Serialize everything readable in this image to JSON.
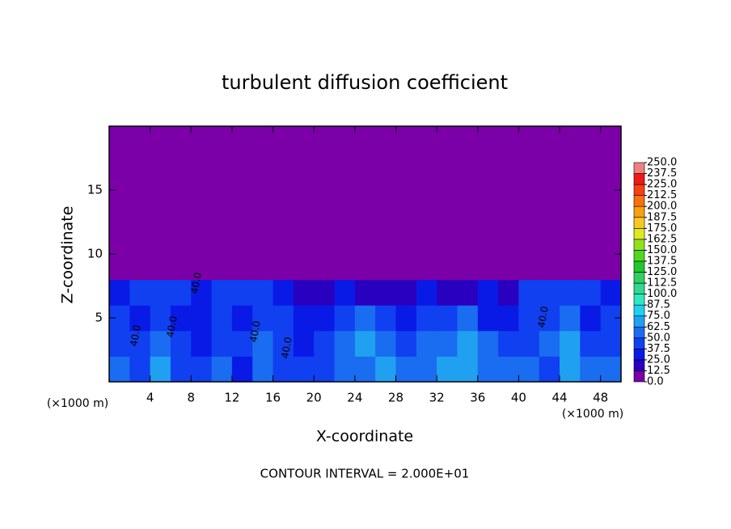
{
  "chart_data": {
    "type": "contour",
    "title": "turbulent diffusion coefficient",
    "x_label": "X-coordinate",
    "y_label": "Z-coordinate",
    "x_unit_label": "(×1000 m)",
    "y_unit_label": "(×1000 m)",
    "footer": "CONTOUR INTERVAL = 2.000E+01",
    "contour_labels": [
      "40.0",
      "40.0",
      "40.0",
      "40.0",
      "40.0",
      "40.0"
    ],
    "xlim": [
      0,
      50
    ],
    "ylim": [
      0,
      20
    ],
    "xticks": [
      4,
      8,
      12,
      16,
      20,
      24,
      28,
      32,
      36,
      40,
      44,
      48
    ],
    "yticks": [
      5,
      10,
      15
    ],
    "field": {
      "x_edges": [
        0,
        2,
        4,
        6,
        8,
        10,
        12,
        14,
        16,
        18,
        20,
        22,
        24,
        26,
        28,
        30,
        32,
        34,
        36,
        38,
        40,
        42,
        44,
        46,
        48,
        50
      ],
      "z_edges": [
        0,
        2,
        4,
        6,
        8,
        20
      ],
      "values": [
        [
          50,
          37.5,
          62.5,
          37.5,
          37.5,
          50,
          25,
          50,
          37.5,
          37.5,
          37.5,
          50,
          50,
          62.5,
          50,
          50,
          62.5,
          62.5,
          50,
          50,
          50,
          37.5,
          62.5,
          50,
          50
        ],
        [
          37.5,
          37.5,
          50,
          37.5,
          25,
          37.5,
          37.5,
          50,
          37.5,
          25,
          37.5,
          50,
          62.5,
          50,
          37.5,
          50,
          50,
          62.5,
          50,
          37.5,
          37.5,
          50,
          62.5,
          37.5,
          37.5
        ],
        [
          37.5,
          25,
          37.5,
          25,
          25,
          37.5,
          25,
          37.5,
          37.5,
          25,
          25,
          37.5,
          50,
          37.5,
          25,
          37.5,
          37.5,
          50,
          25,
          25,
          37.5,
          37.5,
          50,
          25,
          37.5
        ],
        [
          25,
          37.5,
          37.5,
          37.5,
          25,
          37.5,
          37.5,
          37.5,
          25,
          12.5,
          12.5,
          25,
          12.5,
          12.5,
          12.5,
          25,
          12.5,
          12.5,
          25,
          12.5,
          37.5,
          37.5,
          37.5,
          37.5,
          25
        ],
        [
          0,
          0,
          0,
          0,
          0,
          0,
          0,
          0,
          0,
          0,
          0,
          0,
          0,
          0,
          0,
          0,
          0,
          0,
          0,
          0,
          0,
          0,
          0,
          0,
          0
        ]
      ]
    },
    "colorbar": {
      "levels": [
        {
          "value": 0,
          "label": "0.0"
        },
        {
          "value": 12.5,
          "label": "12.5"
        },
        {
          "value": 25,
          "label": "25.0"
        },
        {
          "value": 37.5,
          "label": "37.5"
        },
        {
          "value": 50,
          "label": "50.0"
        },
        {
          "value": 62.5,
          "label": "62.5"
        },
        {
          "value": 75,
          "label": "75.0"
        },
        {
          "value": 87.5,
          "label": "87.5"
        },
        {
          "value": 100,
          "label": "100.0"
        },
        {
          "value": 112.5,
          "label": "112.5"
        },
        {
          "value": 125,
          "label": "125.0"
        },
        {
          "value": 137.5,
          "label": "137.5"
        },
        {
          "value": 150,
          "label": "150.0"
        },
        {
          "value": 162.5,
          "label": "162.5"
        },
        {
          "value": 175,
          "label": "175.0"
        },
        {
          "value": 187.5,
          "label": "187.5"
        },
        {
          "value": 200,
          "label": "200.0"
        },
        {
          "value": 212.5,
          "label": "212.5"
        },
        {
          "value": 225,
          "label": "225.0"
        },
        {
          "value": 237.5,
          "label": "237.5"
        },
        {
          "value": 250,
          "label": "250.0"
        }
      ],
      "colors": [
        "#7b00a8",
        "#2a00c0",
        "#0a1ae6",
        "#1040f0",
        "#1a6cf0",
        "#20a0f0",
        "#20d0f0",
        "#30e8c0",
        "#30d890",
        "#30d060",
        "#20c830",
        "#50d820",
        "#90e020",
        "#e0e820",
        "#f8c820",
        "#f8a010",
        "#f87010",
        "#f84010",
        "#f01818",
        "#f08080"
      ]
    }
  }
}
